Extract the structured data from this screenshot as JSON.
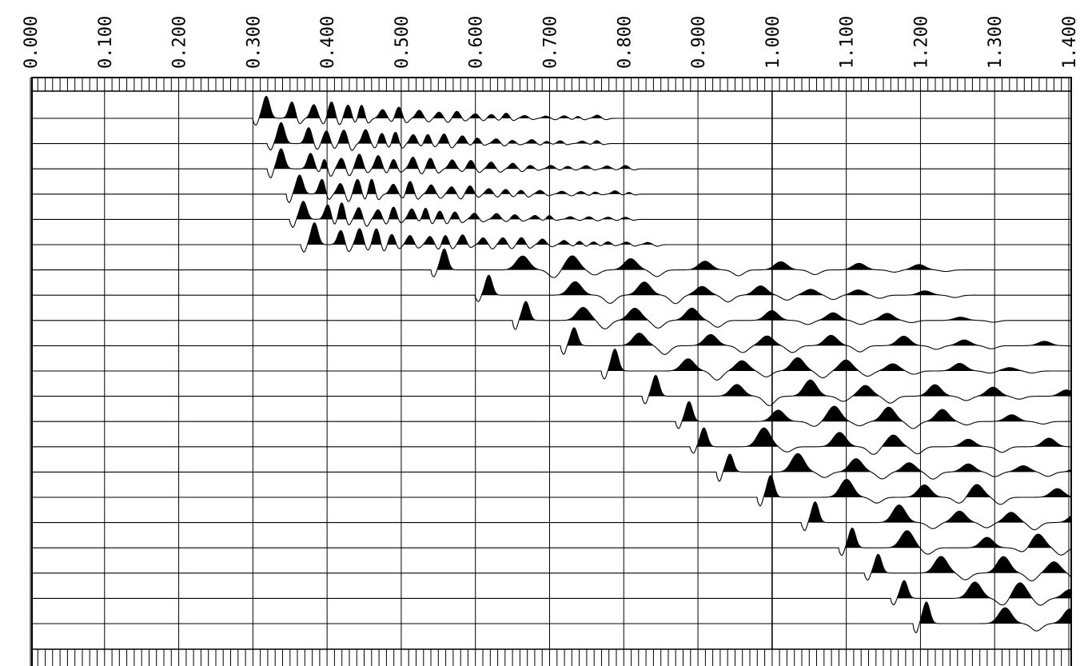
{
  "chart_data": {
    "type": "line",
    "title": "",
    "xlabel": "",
    "ylabel": "",
    "xlim": [
      0.0,
      1.4
    ],
    "tick_labels": [
      "0.000",
      "0.100",
      "0.200",
      "0.300",
      "0.400",
      "0.500",
      "0.600",
      "0.700",
      "0.800",
      "0.900",
      "1.000",
      "1.100",
      "1.200",
      "1.300",
      "1.400"
    ],
    "major_ticks": [
      0.0,
      0.1,
      0.2,
      0.3,
      0.4,
      0.5,
      0.6,
      0.7,
      0.8,
      0.9,
      1.0,
      1.1,
      1.2,
      1.3,
      1.4
    ],
    "minor_tick_step": 0.01,
    "grid": true,
    "fill_positive": true,
    "trace_count": 21,
    "first_break_times": [
      0.3,
      0.32,
      0.32,
      0.345,
      0.35,
      0.365,
      0.54,
      0.6,
      0.65,
      0.715,
      0.77,
      0.825,
      0.87,
      0.89,
      0.925,
      0.98,
      1.04,
      1.09,
      1.125,
      1.16,
      1.19
    ],
    "colors": {
      "ink": "#000000",
      "background": "#ffffff"
    }
  }
}
